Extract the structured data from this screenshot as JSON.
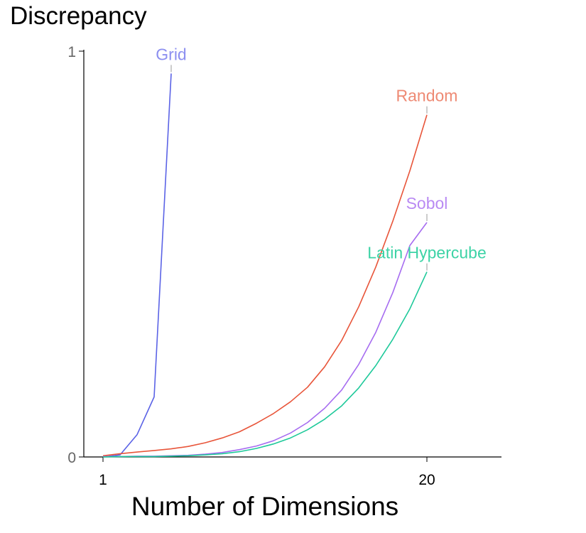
{
  "chart_data": {
    "type": "line",
    "title": "Discrepancy",
    "xlabel": "Number of Dimensions",
    "ylabel": "",
    "xlim": [
      1,
      20
    ],
    "ylim": [
      0,
      1
    ],
    "x_ticks": [
      "1",
      "20"
    ],
    "y_ticks": [
      "0",
      "1"
    ],
    "grid": false,
    "legend": "none",
    "series": [
      {
        "name": "Grid",
        "color": "#5b63e6",
        "label_color": "#8c8ff0",
        "x": [
          1,
          2,
          3,
          4,
          5
        ],
        "y": [
          0.0,
          0.005,
          0.055,
          0.148,
          0.945
        ]
      },
      {
        "name": "Random",
        "color": "#e8553a",
        "label_color": "#ee8a74",
        "x": [
          1,
          2,
          3,
          4,
          5,
          6,
          7,
          8,
          9,
          10,
          11,
          12,
          13,
          14,
          15,
          16,
          17,
          18,
          19,
          20
        ],
        "y": [
          0.003,
          0.008,
          0.012,
          0.016,
          0.02,
          0.026,
          0.035,
          0.047,
          0.062,
          0.083,
          0.107,
          0.136,
          0.172,
          0.222,
          0.287,
          0.37,
          0.468,
          0.581,
          0.705,
          0.843
        ]
      },
      {
        "name": "Sobol",
        "color": "#a66cf0",
        "label_color": "#b98af3",
        "x": [
          1,
          2,
          3,
          4,
          5,
          6,
          7,
          8,
          9,
          10,
          11,
          12,
          13,
          14,
          15,
          16,
          17,
          18,
          19,
          20
        ],
        "y": [
          0.001,
          0.001,
          0.002,
          0.002,
          0.003,
          0.004,
          0.007,
          0.011,
          0.018,
          0.027,
          0.04,
          0.059,
          0.085,
          0.12,
          0.165,
          0.228,
          0.307,
          0.405,
          0.521,
          0.578
        ]
      },
      {
        "name": "Latin Hypercube",
        "color": "#1ec99a",
        "label_color": "#3dd3a6",
        "x": [
          1,
          2,
          3,
          4,
          5,
          6,
          7,
          8,
          9,
          10,
          11,
          12,
          13,
          14,
          15,
          16,
          17,
          18,
          19,
          20
        ],
        "y": [
          0.0,
          0.001,
          0.001,
          0.001,
          0.002,
          0.003,
          0.005,
          0.008,
          0.013,
          0.021,
          0.032,
          0.047,
          0.067,
          0.093,
          0.126,
          0.17,
          0.225,
          0.29,
          0.365,
          0.456
        ]
      }
    ]
  }
}
